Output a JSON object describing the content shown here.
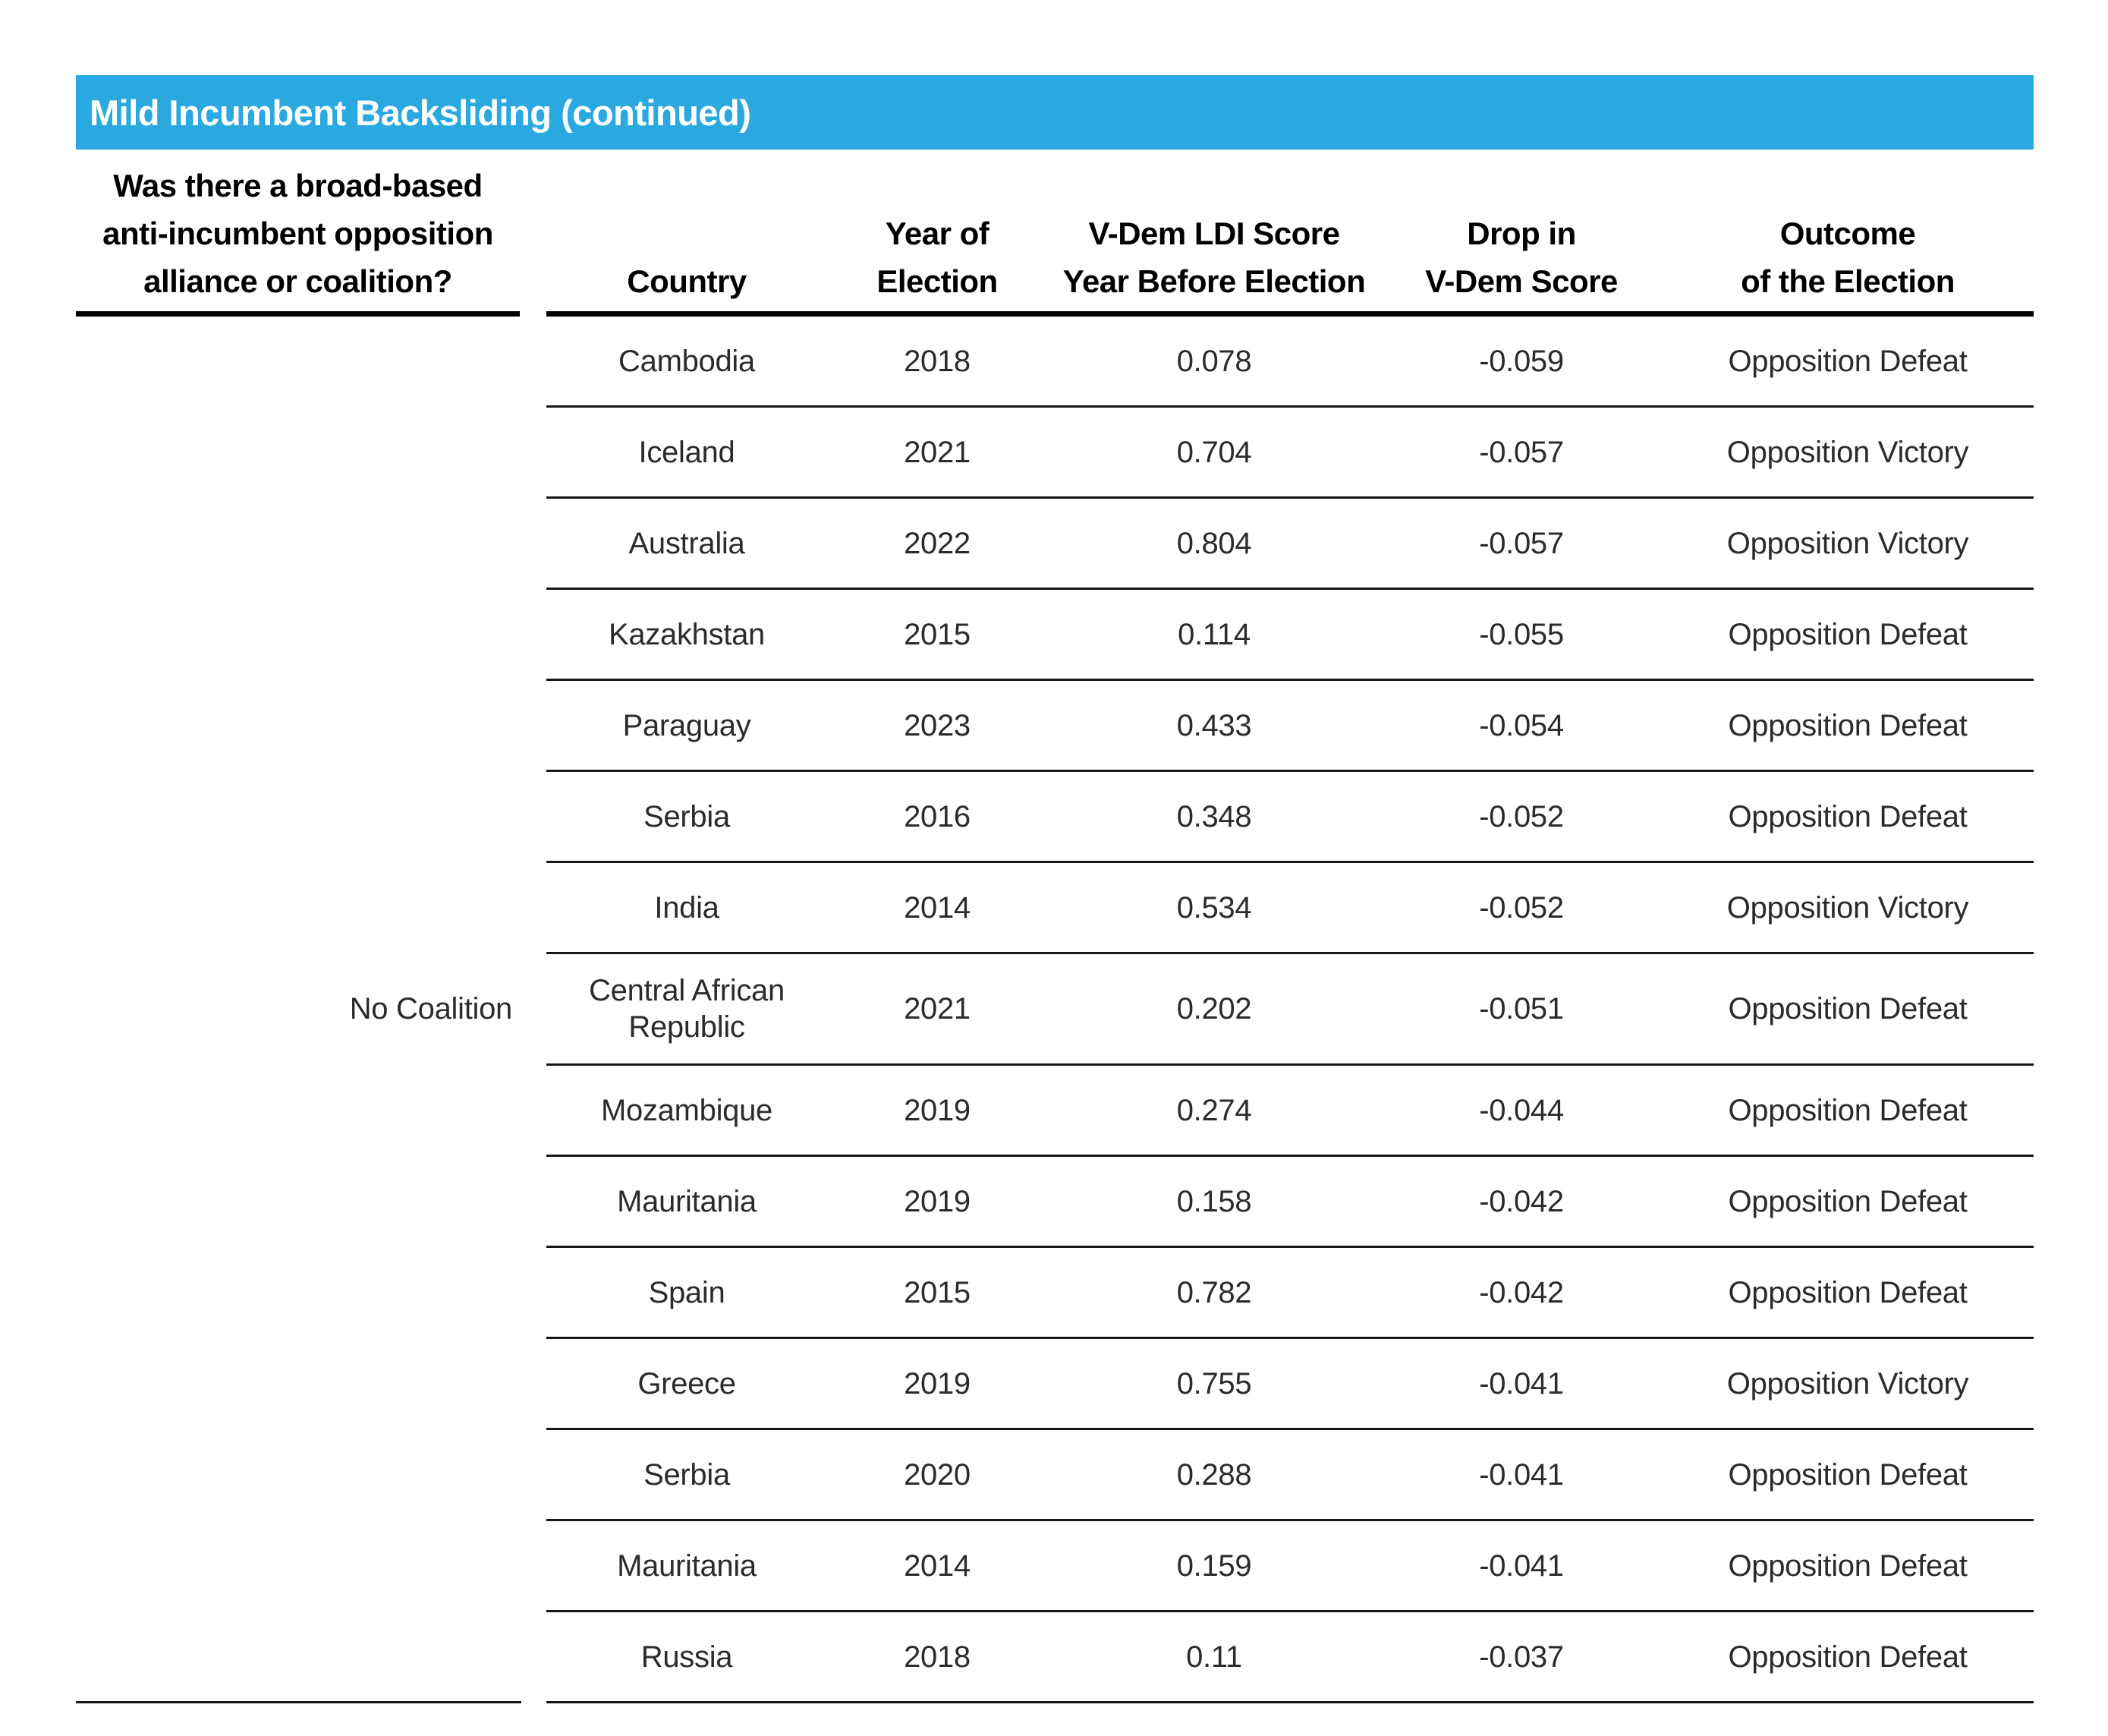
{
  "colors": {
    "accent": "#29a9e0",
    "rule_heavy": "#000000",
    "rule_light": "#161616",
    "text": "#2b2b2b"
  },
  "title_bar": {
    "label": "Mild Incumbent Backsliding (continued)"
  },
  "coalition_column": {
    "header_lines": [
      "Was there a broad-based",
      "anti-incumbent opposition",
      "alliance or coalition?"
    ],
    "group_label": "No Coalition"
  },
  "table": {
    "headers": [
      {
        "lines": [
          "Country"
        ]
      },
      {
        "lines": [
          "Year of",
          "Election"
        ]
      },
      {
        "lines": [
          "V-Dem LDI Score",
          "Year Before Election"
        ]
      },
      {
        "lines": [
          "Drop in",
          "V-Dem Score"
        ]
      },
      {
        "lines": [
          "Outcome",
          "of the Election"
        ]
      }
    ],
    "rows": [
      {
        "country": "Cambodia",
        "year": "2018",
        "ldi_score": "0.078",
        "drop": "-0.059",
        "outcome": "Opposition Defeat"
      },
      {
        "country": "Iceland",
        "year": "2021",
        "ldi_score": "0.704",
        "drop": "-0.057",
        "outcome": "Opposition Victory"
      },
      {
        "country": "Australia",
        "year": "2022",
        "ldi_score": "0.804",
        "drop": "-0.057",
        "outcome": "Opposition Victory"
      },
      {
        "country": "Kazakhstan",
        "year": "2015",
        "ldi_score": "0.114",
        "drop": "-0.055",
        "outcome": "Opposition Defeat"
      },
      {
        "country": "Paraguay",
        "year": "2023",
        "ldi_score": "0.433",
        "drop": "-0.054",
        "outcome": "Opposition Defeat"
      },
      {
        "country": "Serbia",
        "year": "2016",
        "ldi_score": "0.348",
        "drop": "-0.052",
        "outcome": "Opposition Defeat"
      },
      {
        "country": "India",
        "year": "2014",
        "ldi_score": "0.534",
        "drop": "-0.052",
        "outcome": "Opposition Victory"
      },
      {
        "country": "Central African Republic",
        "year": "2021",
        "ldi_score": "0.202",
        "drop": "-0.051",
        "outcome": "Opposition Defeat"
      },
      {
        "country": "Mozambique",
        "year": "2019",
        "ldi_score": "0.274",
        "drop": "-0.044",
        "outcome": "Opposition Defeat"
      },
      {
        "country": "Mauritania",
        "year": "2019",
        "ldi_score": "0.158",
        "drop": "-0.042",
        "outcome": "Opposition Defeat"
      },
      {
        "country": "Spain",
        "year": "2015",
        "ldi_score": "0.782",
        "drop": "-0.042",
        "outcome": "Opposition Defeat"
      },
      {
        "country": "Greece",
        "year": "2019",
        "ldi_score": "0.755",
        "drop": "-0.041",
        "outcome": "Opposition Victory"
      },
      {
        "country": "Serbia",
        "year": "2020",
        "ldi_score": "0.288",
        "drop": "-0.041",
        "outcome": "Opposition Defeat"
      },
      {
        "country": "Mauritania",
        "year": "2014",
        "ldi_score": "0.159",
        "drop": "-0.041",
        "outcome": "Opposition Defeat"
      },
      {
        "country": "Russia",
        "year": "2018",
        "ldi_score": "0.11",
        "drop": "-0.037",
        "outcome": "Opposition Defeat"
      }
    ]
  }
}
